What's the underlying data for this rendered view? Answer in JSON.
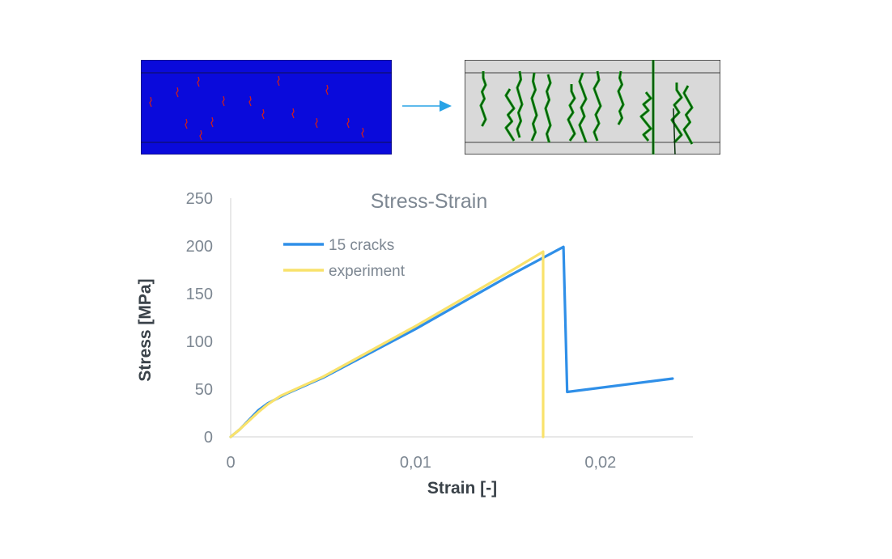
{
  "colors": {
    "initial_panel_bg": "#0a0adb",
    "initial_crack": "#cc1f1f",
    "final_panel_bg": "#d9d9d9",
    "final_crack_outline": "#16a016",
    "final_crack_core": "#06300a",
    "arrow": "#29a3e6",
    "series_15_cracks": "#2f8fe8",
    "series_experiment": "#f9e26b",
    "axis_text": "#7d8792",
    "axis_title": "#3a4249",
    "axis_line": "#d0d0d0"
  },
  "panels": {
    "initial_label": "",
    "final_label": ""
  },
  "chart_data": {
    "type": "line",
    "title": "Stress-Strain",
    "xlabel": "Strain [-]",
    "ylabel": "Stress [MPa]",
    "xlim": [
      0,
      0.025
    ],
    "ylim": [
      0,
      250
    ],
    "xticks": [
      0,
      0.01,
      0.02
    ],
    "xtick_labels": [
      "0",
      "0,01",
      "0,02"
    ],
    "yticks": [
      0,
      50,
      100,
      150,
      200,
      250
    ],
    "ytick_labels": [
      "0",
      "50",
      "100",
      "150",
      "200",
      "250"
    ],
    "grid": false,
    "legend_position": "top-left",
    "series": [
      {
        "name": "15 cracks",
        "color": "#2f8fe8",
        "x": [
          0,
          0.0005,
          0.001,
          0.0015,
          0.002,
          0.003,
          0.005,
          0.01,
          0.015,
          0.018,
          0.0182,
          0.0239
        ],
        "y": [
          0,
          8,
          18,
          28,
          35,
          45,
          62,
          113,
          168,
          199,
          47,
          61
        ]
      },
      {
        "name": "experiment",
        "color": "#f9e26b",
        "x": [
          0,
          0.0005,
          0.001,
          0.0015,
          0.002,
          0.0027,
          0.005,
          0.01,
          0.015,
          0.0169,
          0.0169
        ],
        "y": [
          0,
          8,
          17,
          26,
          34,
          43,
          63,
          116,
          172,
          194,
          0
        ]
      }
    ]
  }
}
